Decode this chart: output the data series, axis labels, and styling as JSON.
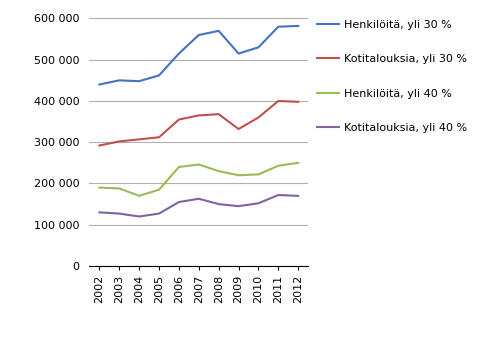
{
  "years": [
    2002,
    2003,
    2004,
    2005,
    2006,
    2007,
    2008,
    2009,
    2010,
    2011,
    2012
  ],
  "henkilo_30": [
    440000,
    450000,
    448000,
    462000,
    515000,
    560000,
    570000,
    515000,
    530000,
    580000,
    582000
  ],
  "kotitalous_30": [
    292000,
    302000,
    307000,
    312000,
    355000,
    365000,
    368000,
    332000,
    360000,
    400000,
    398000
  ],
  "henkilo_40": [
    190000,
    188000,
    170000,
    185000,
    240000,
    246000,
    230000,
    220000,
    222000,
    243000,
    250000
  ],
  "kotitalous_40": [
    130000,
    127000,
    120000,
    127000,
    155000,
    163000,
    150000,
    145000,
    152000,
    172000,
    170000
  ],
  "colors": {
    "henkilo_30": "#4472C4",
    "kotitalous_30": "#C0504D",
    "henkilo_40": "#9BBB59",
    "kotitalous_40": "#8064A2"
  },
  "legend_labels": {
    "henkilo_30": "Henkilöitä, yli 30 %",
    "kotitalous_30": "Kotitalouksia, yli 30 %",
    "henkilo_40": "Henkilöitä, yli 40 %",
    "kotitalous_40": "Kotitalouksia, yli 40 %"
  },
  "ylim": [
    0,
    620000
  ],
  "yticks": [
    0,
    100000,
    200000,
    300000,
    400000,
    500000,
    600000
  ],
  "background_color": "#ffffff",
  "grid_color": "#b0b0b0"
}
